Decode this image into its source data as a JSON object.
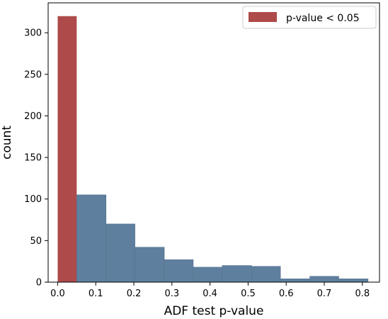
{
  "chart_data": {
    "type": "bar",
    "title": "",
    "xlabel": "ADF test p-value",
    "ylabel": "count",
    "xlim": [
      -0.025,
      0.845
    ],
    "ylim": [
      0,
      336
    ],
    "x_ticks": [
      0.0,
      0.1,
      0.2,
      0.3,
      0.4,
      0.5,
      0.6,
      0.7,
      0.8
    ],
    "x_tick_labels": [
      "0.0",
      "0.1",
      "0.2",
      "0.3",
      "0.4",
      "0.5",
      "0.6",
      "0.7",
      "0.8"
    ],
    "y_ticks": [
      0,
      50,
      100,
      150,
      200,
      250,
      300
    ],
    "y_tick_labels": [
      "0",
      "50",
      "100",
      "150",
      "200",
      "250",
      "300"
    ],
    "grid": false,
    "legend": {
      "placement": "top-right",
      "entries": [
        {
          "label": "p-value < 0.05",
          "color": "#ae4a4a"
        }
      ]
    },
    "series": [
      {
        "name": "p-value < 0.05",
        "color": "#ae4a4a",
        "bins": [
          {
            "x0": 0.0,
            "x1": 0.05,
            "count": 320
          }
        ]
      },
      {
        "color": "#5f7f9e",
        "bins": [
          {
            "x0": 0.05,
            "x1": 0.127,
            "count": 105
          },
          {
            "x0": 0.127,
            "x1": 0.203,
            "count": 70
          },
          {
            "x0": 0.203,
            "x1": 0.28,
            "count": 42
          },
          {
            "x0": 0.28,
            "x1": 0.356,
            "count": 27
          },
          {
            "x0": 0.356,
            "x1": 0.432,
            "count": 18
          },
          {
            "x0": 0.432,
            "x1": 0.509,
            "count": 20
          },
          {
            "x0": 0.509,
            "x1": 0.585,
            "count": 19
          },
          {
            "x0": 0.585,
            "x1": 0.662,
            "count": 4
          },
          {
            "x0": 0.662,
            "x1": 0.738,
            "count": 7
          },
          {
            "x0": 0.738,
            "x1": 0.815,
            "count": 4
          }
        ]
      }
    ]
  }
}
